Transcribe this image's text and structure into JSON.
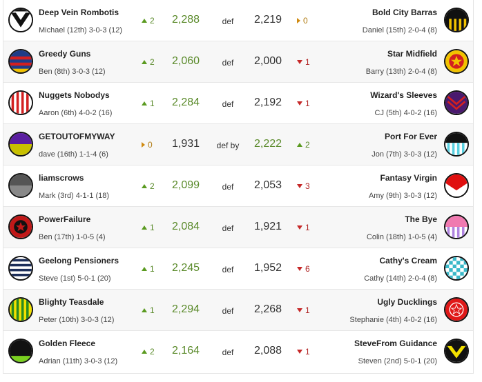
{
  "matchups": [
    {
      "home": {
        "name": "Deep Vein Rombotis",
        "detail": "Michael (12th) 3-0-3 (12)",
        "move_dir": "up",
        "move": "2",
        "score": "2,288",
        "logo": "vee-icon"
      },
      "result": "def",
      "away": {
        "name": "Bold City Barras",
        "detail": "Daniel (15th) 2-0-4 (8)",
        "move_dir": "same",
        "move": "0",
        "score": "2,219",
        "logo": "yellow-stripes-icon"
      }
    },
    {
      "home": {
        "name": "Greedy Guns",
        "detail": "Ben (8th) 3-0-3 (12)",
        "move_dir": "up",
        "move": "2",
        "score": "2,060",
        "logo": "hoops-icon"
      },
      "result": "def",
      "away": {
        "name": "Star Midfield",
        "detail": "Barry (13th) 2-0-4 (8)",
        "move_dir": "down",
        "move": "1",
        "score": "2,000",
        "logo": "star-icon"
      }
    },
    {
      "home": {
        "name": "Nuggets Nobodys",
        "detail": "Aaron (6th) 4-0-2 (16)",
        "move_dir": "up",
        "move": "1",
        "score": "2,284",
        "logo": "red-stripes-icon"
      },
      "result": "def",
      "away": {
        "name": "Wizard's Sleeves",
        "detail": "CJ (5th) 4-0-2 (16)",
        "move_dir": "down",
        "move": "1",
        "score": "2,192",
        "logo": "chevrons-icon"
      }
    },
    {
      "home": {
        "name": "GETOUTOFMYWAY",
        "detail": "dave (16th) 1-1-4 (6)",
        "move_dir": "same",
        "move": "0",
        "score": "1,931",
        "logo": "purple-yellow-icon"
      },
      "result": "def by",
      "away": {
        "name": "Port For Ever",
        "detail": "Jon (7th) 3-0-3 (12)",
        "move_dir": "up",
        "move": "2",
        "score": "2,222",
        "logo": "teal-stripes-icon"
      }
    },
    {
      "home": {
        "name": "liamscrows",
        "detail": "Mark (3rd) 4-1-1 (18)",
        "move_dir": "up",
        "move": "2",
        "score": "2,099",
        "logo": "grey-split-icon"
      },
      "result": "def",
      "away": {
        "name": "Fantasy Virgin",
        "detail": "Amy (9th) 3-0-3 (12)",
        "move_dir": "down",
        "move": "3",
        "score": "2,053",
        "logo": "red-sash-icon"
      }
    },
    {
      "home": {
        "name": "PowerFailure",
        "detail": "Ben (17th) 1-0-5 (4)",
        "move_dir": "up",
        "move": "1",
        "score": "2,084",
        "logo": "dark-star-icon"
      },
      "result": "def",
      "away": {
        "name": "The Bye",
        "detail": "Colin (18th) 1-0-5 (4)",
        "move_dir": "down",
        "move": "1",
        "score": "1,921",
        "logo": "pink-stripes-icon"
      }
    },
    {
      "home": {
        "name": "Geelong Pensioners",
        "detail": "Steve (1st) 5-0-1 (20)",
        "move_dir": "up",
        "move": "1",
        "score": "2,245",
        "logo": "navy-hoops-icon"
      },
      "result": "def",
      "away": {
        "name": "Cathy's Cream",
        "detail": "Cathy (14th) 2-0-4 (8)",
        "move_dir": "down",
        "move": "6",
        "score": "1,952",
        "logo": "checker-icon"
      }
    },
    {
      "home": {
        "name": "Blighty Teasdale",
        "detail": "Peter (10th) 3-0-3 (12)",
        "move_dir": "up",
        "move": "1",
        "score": "2,294",
        "logo": "green-stripes-icon"
      },
      "result": "def",
      "away": {
        "name": "Ugly Ducklings",
        "detail": "Stephanie (4th) 4-0-2 (16)",
        "move_dir": "down",
        "move": "1",
        "score": "2,268",
        "logo": "red-star-icon"
      }
    },
    {
      "home": {
        "name": "Golden Fleece",
        "detail": "Adrian (11th) 3-0-3 (12)",
        "move_dir": "up",
        "move": "2",
        "score": "2,164",
        "logo": "black-green-icon"
      },
      "result": "def",
      "away": {
        "name": "SteveFrom Guidance",
        "detail": "Steven (2nd) 5-0-1 (20)",
        "move_dir": "down",
        "move": "1",
        "score": "2,088",
        "logo": "yellow-vee-icon"
      }
    }
  ],
  "colors": {
    "win": "#5a8a2a",
    "up": "#5a9a20",
    "down": "#c62828",
    "same": "#d08a10"
  }
}
